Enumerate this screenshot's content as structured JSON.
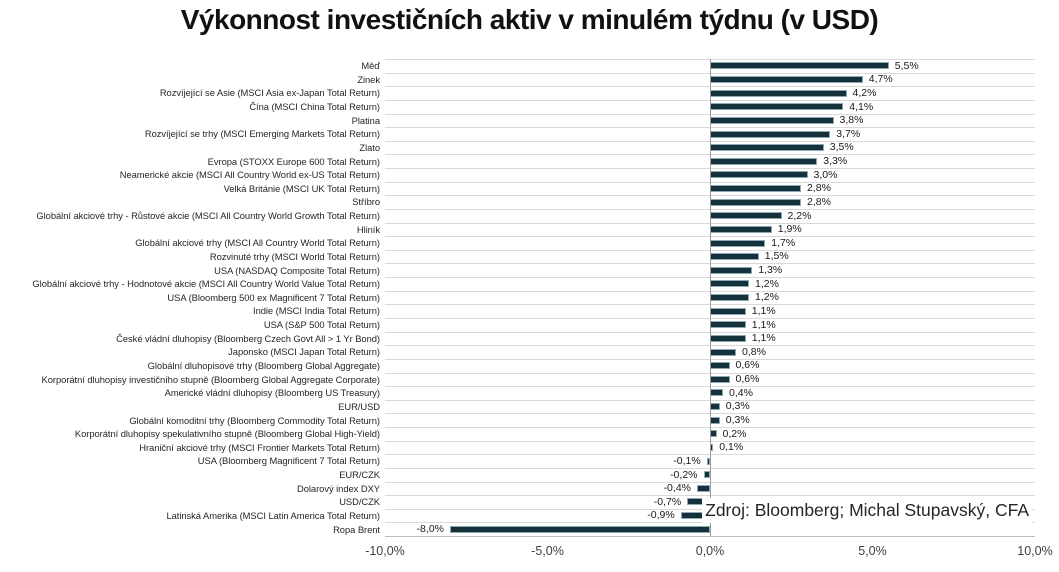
{
  "title": "Výkonnost investičních aktiv v minulém týdnu (v USD)",
  "source": "Zdroj: Bloomberg; Michal Stupavský, CFA",
  "colors": {
    "bar_fill": "#13303b",
    "bar_border": "#8ca9b4",
    "gridline": "#d9d9d9",
    "zero_line": "#9b9b9b",
    "axis_line": "#bfbfbf",
    "text": "#262626"
  },
  "chart_data": {
    "type": "bar",
    "orientation": "horizontal",
    "title": "Výkonnost investičních aktiv v minulém týdnu (v USD)",
    "xlabel": "",
    "ylabel": "",
    "xlim": [
      -10,
      10
    ],
    "grid": "category-separators",
    "legend": "none",
    "x_ticks": [
      {
        "label": "-10,0%",
        "value": -10
      },
      {
        "label": "-5,0%",
        "value": -5
      },
      {
        "label": "0,0%",
        "value": 0
      },
      {
        "label": "5,0%",
        "value": 5
      },
      {
        "label": "10,0%",
        "value": 10
      }
    ],
    "categories": [
      "Měď",
      "Zinek",
      "Rozvíjející se Asie (MSCI Asia ex-Japan Total Return)",
      "Čína (MSCI China Total Return)",
      "Platina",
      "Rozvíjející se trhy (MSCI Emerging Markets Total Return)",
      "Zlato",
      "Evropa (STOXX Europe 600 Total Return)",
      "Neamerické akcie (MSCI All Country World ex-US Total Return)",
      "Velká Británie (MSCI UK Total Return)",
      "Stříbro",
      "Globální akciové trhy - Růstové akcie (MSCI All Country World Growth Total Return)",
      "Hliník",
      "Globální akciové trhy (MSCI All Country World Total Return)",
      "Rozvinuté trhy (MSCI World Total Return)",
      "USA (NASDAQ Composite Total Return)",
      "Globální akciové trhy - Hodnotové akcie (MSCI All Country World Value Total Return)",
      "USA (Bloomberg 500 ex Magnificent 7 Total Return)",
      "Indie (MSCI India Total Return)",
      "USA (S&P 500 Total Return)",
      "České vládní dluhopisy (Bloomberg Czech Govt All > 1 Yr Bond)",
      "Japonsko (MSCI Japan Total Return)",
      "Globální dluhopisové trhy (Bloomberg Global Aggregate)",
      "Korporátní dluhopisy investičního stupně (Bloomberg Global Aggregate Corporate)",
      "Americké vládní dluhopisy (Bloomberg US Treasury)",
      "EUR/USD",
      "Globální komoditní trhy (Bloomberg Commodity Total Return)",
      "Korporátní dluhopisy spekulativního stupně (Bloomberg Global High-Yield)",
      "Hraniční akciové trhy (MSCI Frontier Markets Total Return)",
      "USA (Bloomberg Magnificent 7 Total Return)",
      "EUR/CZK",
      "Dolarový index DXY",
      "USD/CZK",
      "Latinská Amerika (MSCI Latin America Total Return)",
      "Ropa Brent"
    ],
    "values": [
      5.5,
      4.7,
      4.2,
      4.1,
      3.8,
      3.7,
      3.5,
      3.3,
      3.0,
      2.8,
      2.8,
      2.2,
      1.9,
      1.7,
      1.5,
      1.3,
      1.2,
      1.2,
      1.1,
      1.1,
      1.1,
      0.8,
      0.6,
      0.6,
      0.4,
      0.3,
      0.3,
      0.2,
      0.1,
      -0.1,
      -0.2,
      -0.4,
      -0.7,
      -0.9,
      -8.0
    ],
    "value_labels": [
      "5,5%",
      "4,7%",
      "4,2%",
      "4,1%",
      "3,8%",
      "3,7%",
      "3,5%",
      "3,3%",
      "3,0%",
      "2,8%",
      "2,8%",
      "2,2%",
      "1,9%",
      "1,7%",
      "1,5%",
      "1,3%",
      "1,2%",
      "1,2%",
      "1,1%",
      "1,1%",
      "1,1%",
      "0,8%",
      "0,6%",
      "0,6%",
      "0,4%",
      "0,3%",
      "0,3%",
      "0,2%",
      "0,1%",
      "-0,1%",
      "-0,2%",
      "-0,4%",
      "-0,7%",
      "-0,9%",
      "-8,0%"
    ]
  }
}
